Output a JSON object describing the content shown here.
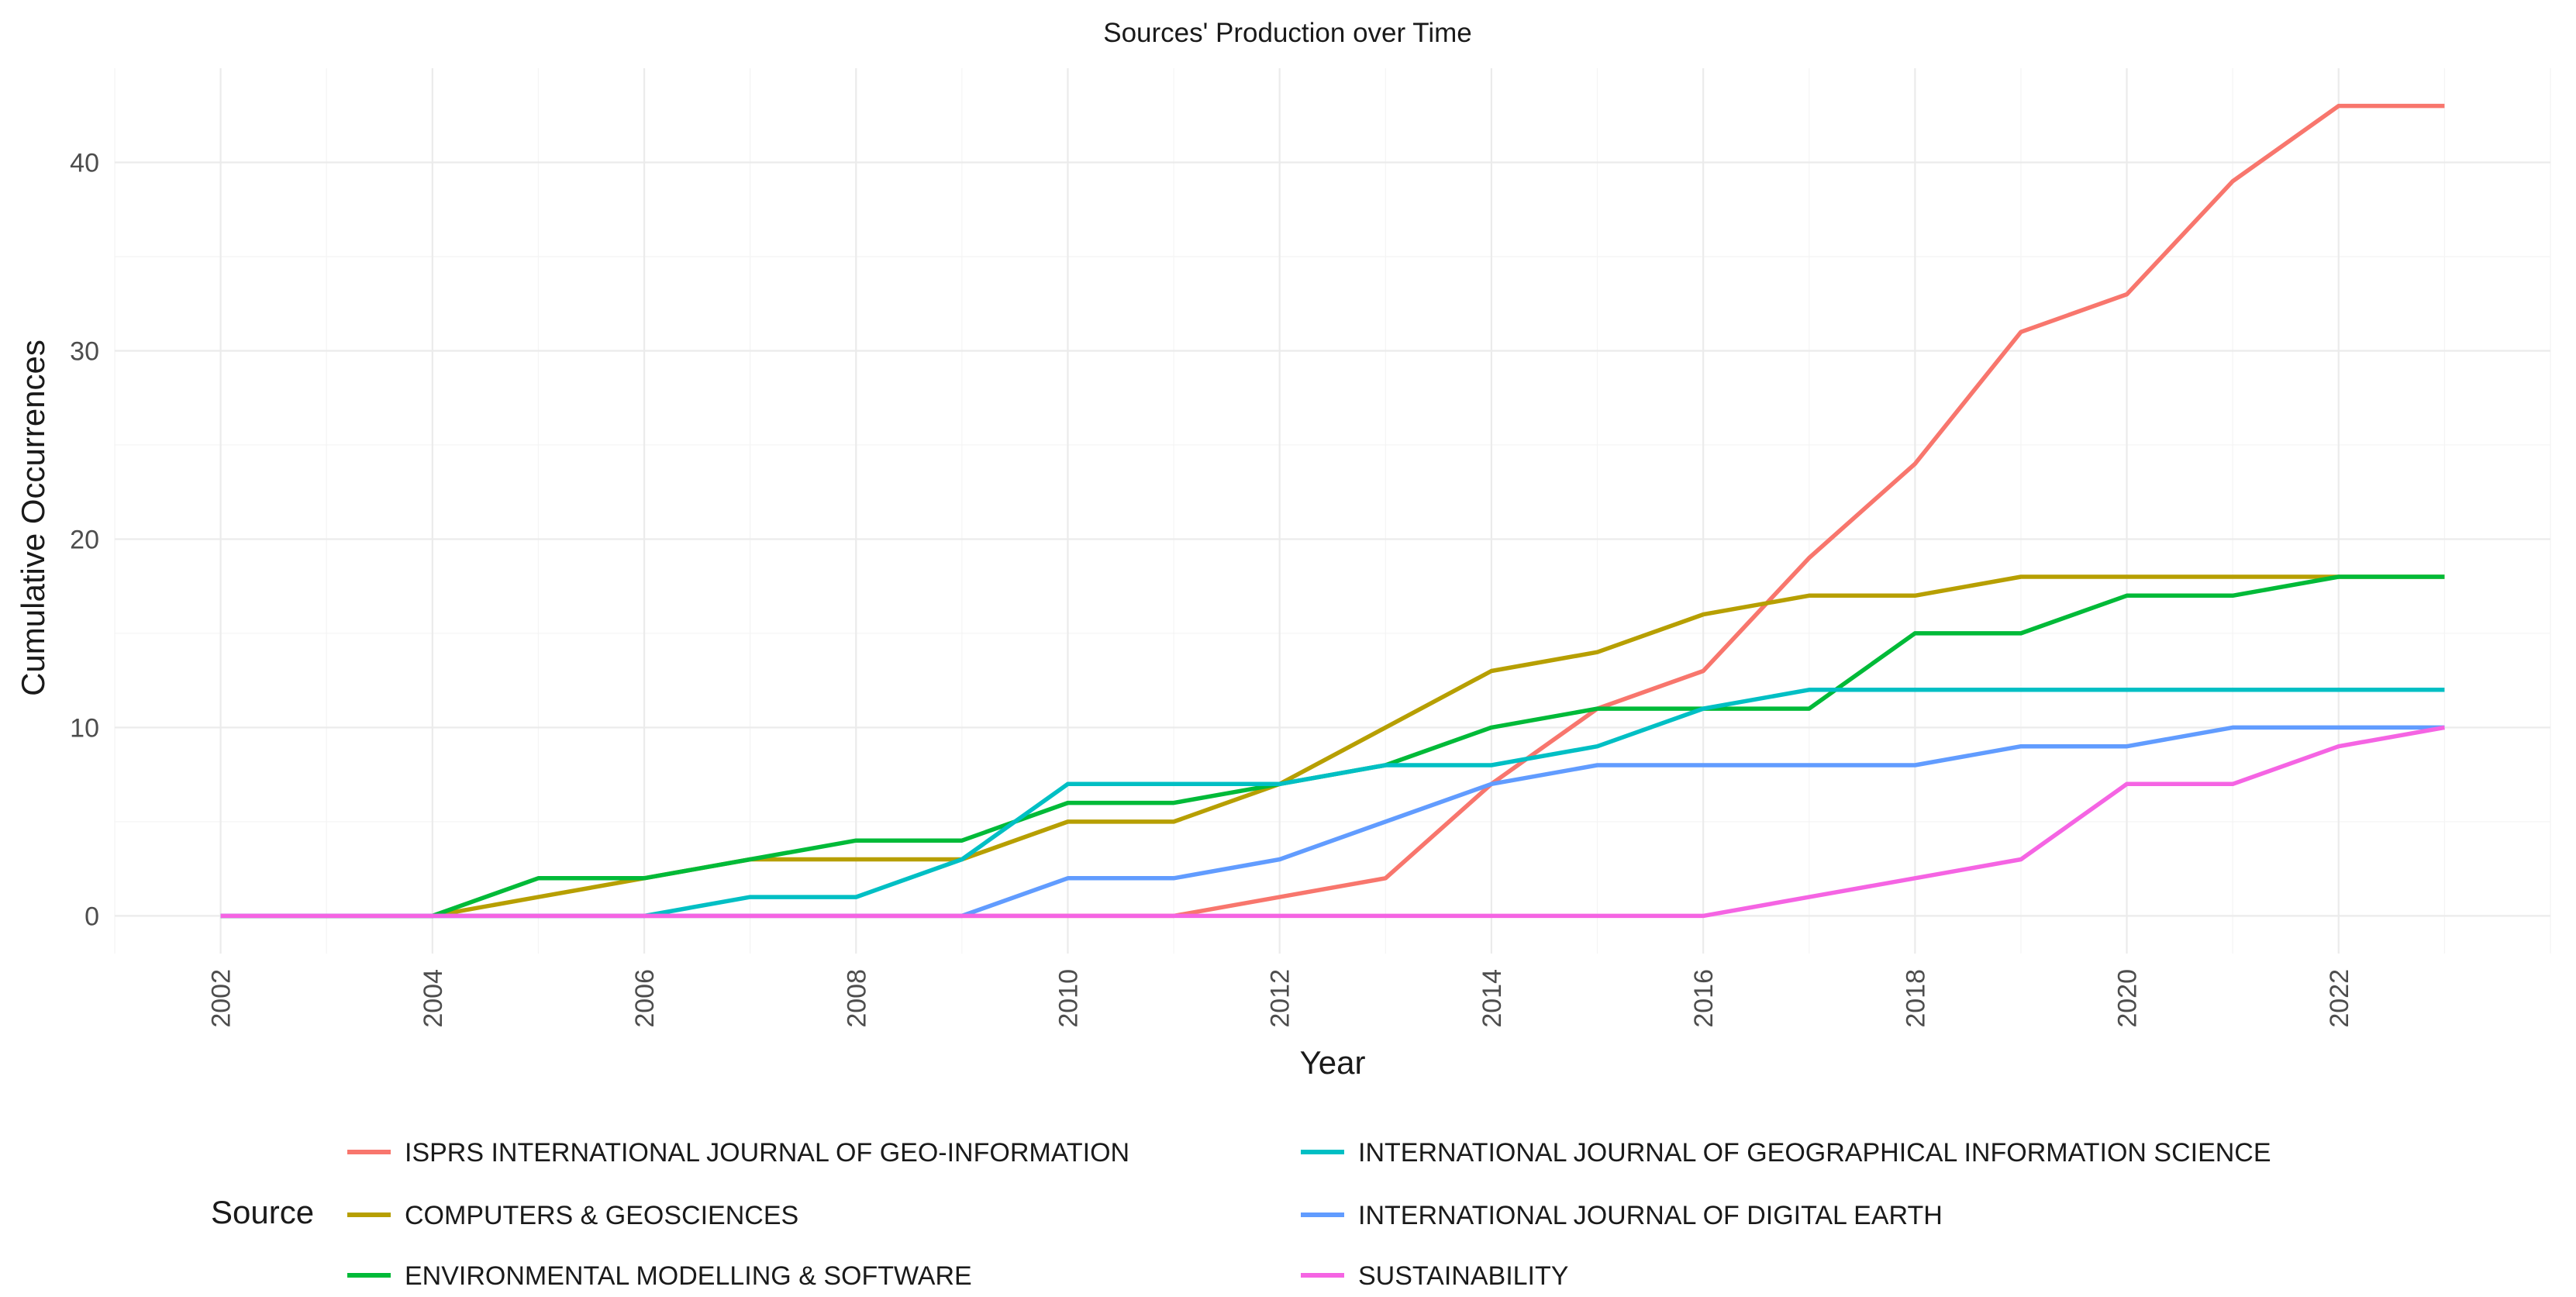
{
  "chart_data": {
    "type": "line",
    "title": "Sources' Production over Time",
    "xlabel": "Year",
    "ylabel": "Cumulative Occurrences",
    "xlim": [
      2001,
      2024
    ],
    "ylim": [
      -2,
      45
    ],
    "x_ticks": [
      2002,
      2004,
      2006,
      2008,
      2010,
      2012,
      2014,
      2016,
      2018,
      2020,
      2022
    ],
    "y_ticks": [
      0,
      10,
      20,
      30,
      40
    ],
    "grid": true,
    "legend_title": "Source",
    "legend_position": "bottom",
    "x": [
      2002,
      2003,
      2004,
      2005,
      2006,
      2007,
      2008,
      2009,
      2010,
      2011,
      2012,
      2013,
      2014,
      2015,
      2016,
      2017,
      2018,
      2019,
      2020,
      2021,
      2022,
      2023
    ],
    "series": [
      {
        "name": "ISPRS INTERNATIONAL JOURNAL OF GEO-INFORMATION",
        "color": "#F8766D",
        "values": [
          0,
          0,
          0,
          0,
          0,
          0,
          0,
          0,
          0,
          0,
          1,
          2,
          7,
          11,
          13,
          19,
          24,
          31,
          33,
          39,
          43,
          43
        ]
      },
      {
        "name": "COMPUTERS & GEOSCIENCES",
        "color": "#B79F00",
        "values": [
          0,
          0,
          0,
          1,
          2,
          3,
          3,
          3,
          5,
          5,
          7,
          10,
          13,
          14,
          16,
          17,
          17,
          18,
          18,
          18,
          18,
          18
        ]
      },
      {
        "name": "ENVIRONMENTAL MODELLING & SOFTWARE",
        "color": "#00BA38",
        "values": [
          0,
          0,
          0,
          2,
          2,
          3,
          4,
          4,
          6,
          6,
          7,
          8,
          10,
          11,
          11,
          11,
          15,
          15,
          17,
          17,
          18,
          18
        ]
      },
      {
        "name": "INTERNATIONAL JOURNAL OF GEOGRAPHICAL INFORMATION SCIENCE",
        "color": "#00BFC4",
        "values": [
          0,
          0,
          0,
          0,
          0,
          1,
          1,
          3,
          7,
          7,
          7,
          8,
          8,
          9,
          11,
          12,
          12,
          12,
          12,
          12,
          12,
          12
        ]
      },
      {
        "name": "INTERNATIONAL JOURNAL OF DIGITAL EARTH",
        "color": "#619CFF",
        "values": [
          0,
          0,
          0,
          0,
          0,
          0,
          0,
          0,
          2,
          2,
          3,
          5,
          7,
          8,
          8,
          8,
          8,
          9,
          9,
          10,
          10,
          10
        ]
      },
      {
        "name": "SUSTAINABILITY",
        "color": "#F564E3",
        "values": [
          0,
          0,
          0,
          0,
          0,
          0,
          0,
          0,
          0,
          0,
          0,
          0,
          0,
          0,
          0,
          1,
          2,
          3,
          7,
          7,
          9,
          10
        ]
      }
    ]
  }
}
